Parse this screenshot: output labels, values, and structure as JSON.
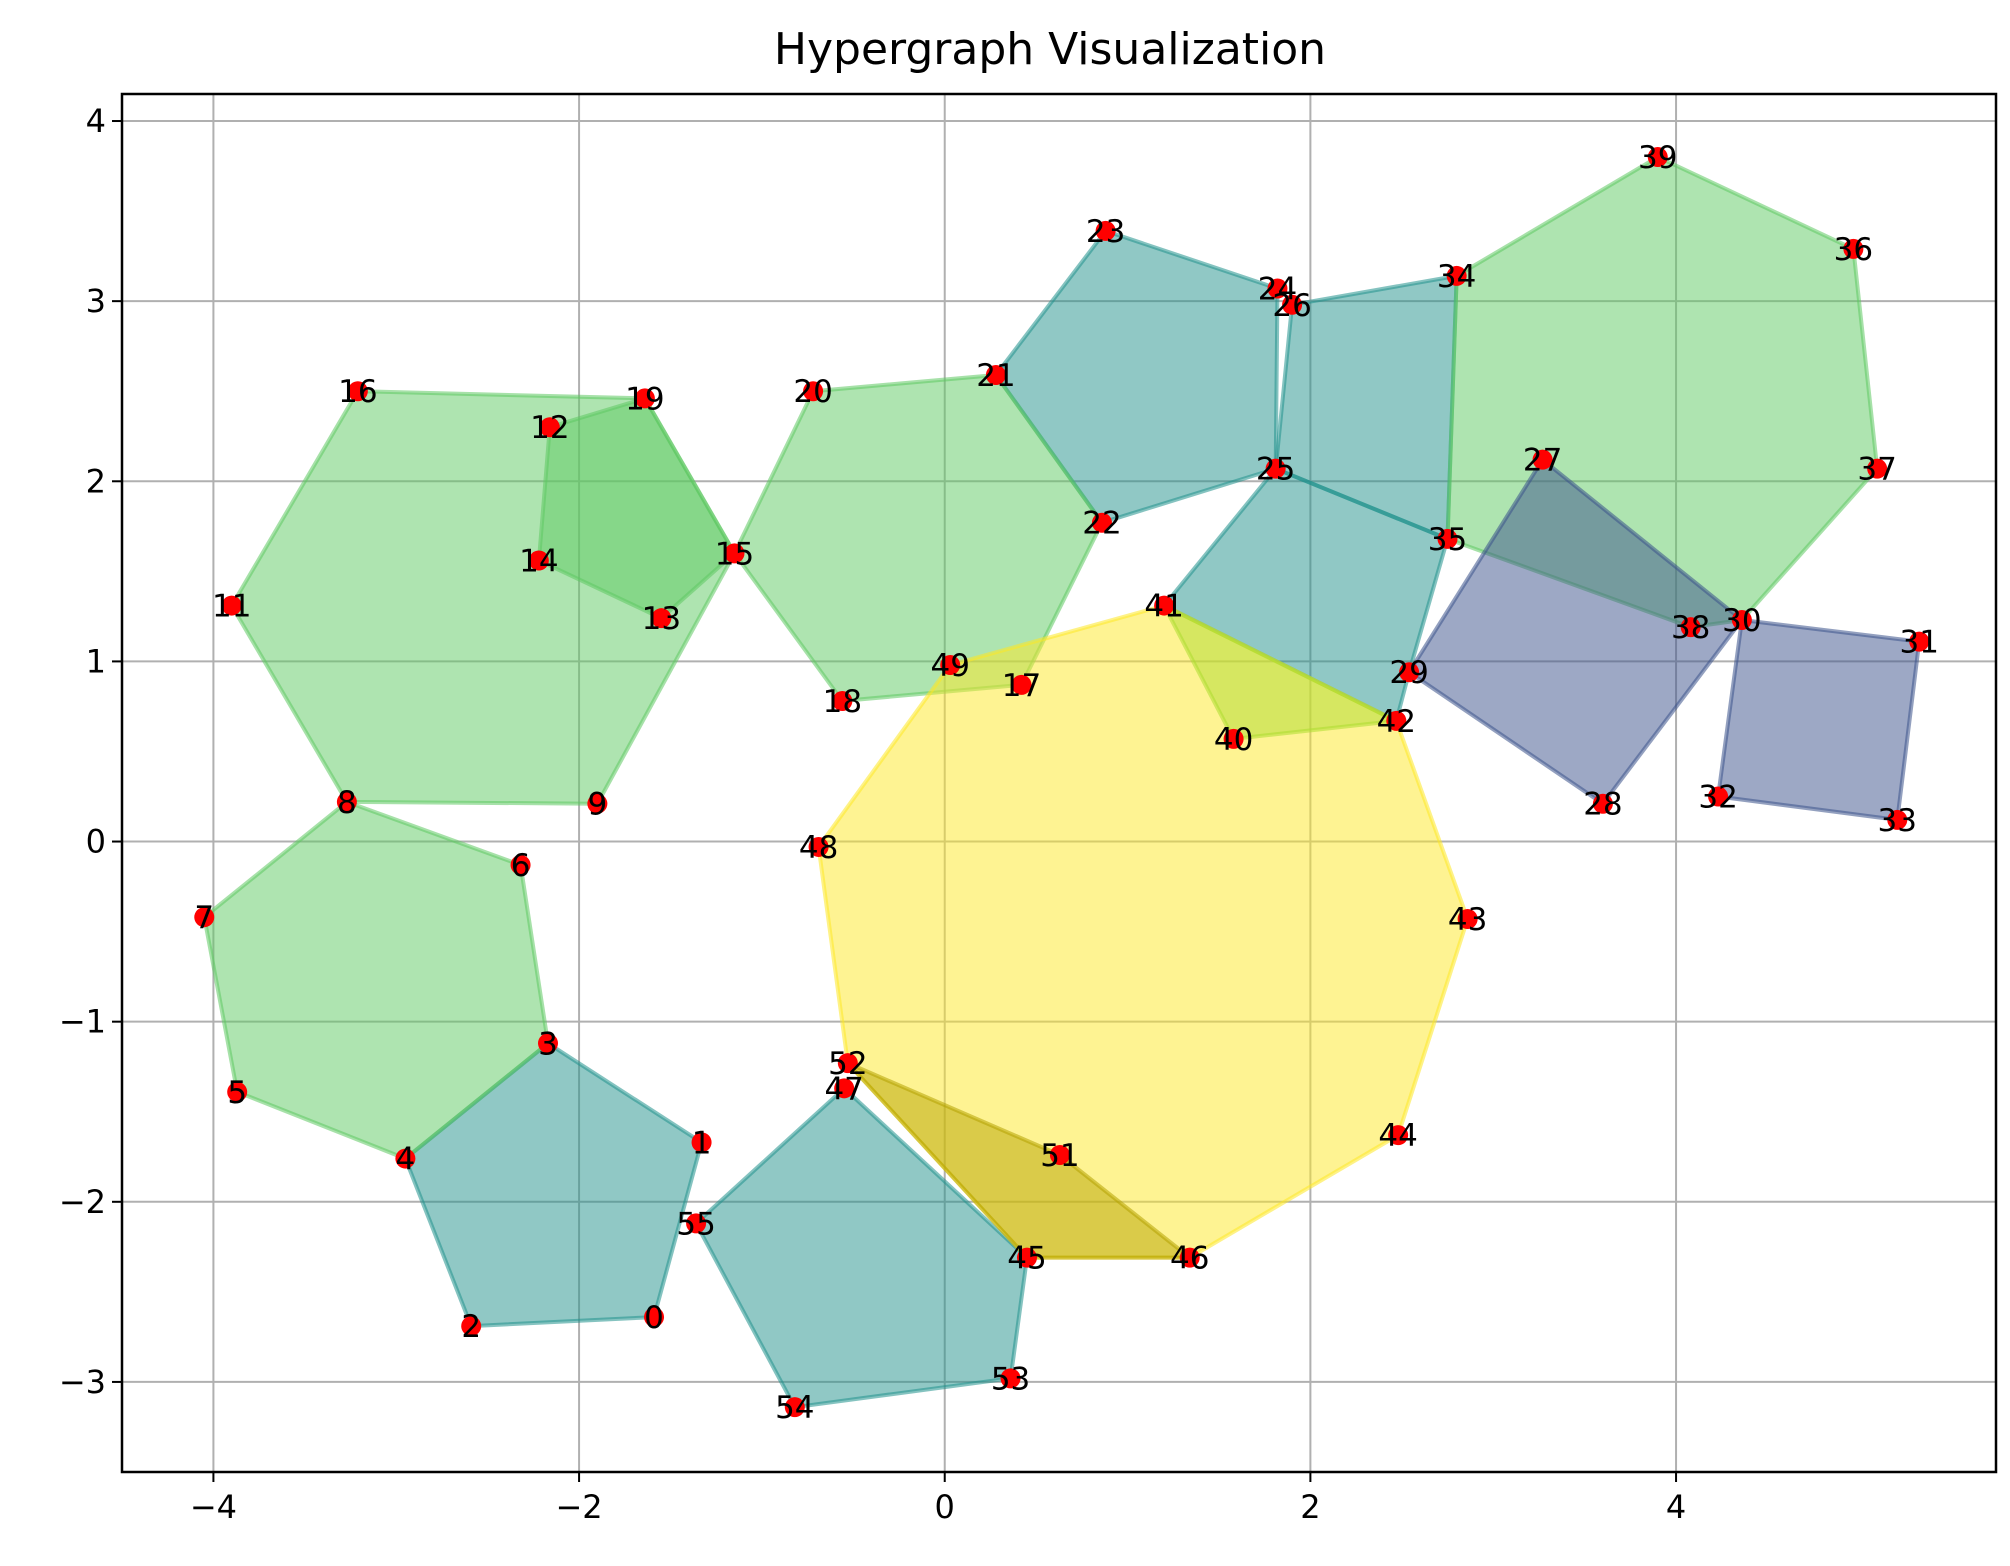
{
  "chart_data": {
    "type": "hypergraph",
    "title": "Hypergraph Visualization",
    "xlim": [
      -4.5,
      5.75
    ],
    "ylim": [
      -3.5,
      4.15
    ],
    "xticks": [
      -4,
      -2,
      0,
      2,
      4
    ],
    "yticks": [
      -3,
      -2,
      -1,
      0,
      1,
      2,
      3,
      4
    ],
    "xtick_labels": [
      "−4",
      "−2",
      "0",
      "2",
      "4"
    ],
    "ytick_labels": [
      "−3",
      "−2",
      "−1",
      "0",
      "1",
      "2",
      "3",
      "4"
    ],
    "grid": true,
    "node_color": "#ff0000",
    "nodes": [
      {
        "id": "0",
        "x": -1.59,
        "y": -2.64
      },
      {
        "id": "1",
        "x": -1.33,
        "y": -1.67
      },
      {
        "id": "2",
        "x": -2.59,
        "y": -2.69
      },
      {
        "id": "3",
        "x": -2.17,
        "y": -1.12
      },
      {
        "id": "4",
        "x": -2.95,
        "y": -1.76
      },
      {
        "id": "5",
        "x": -3.87,
        "y": -1.39
      },
      {
        "id": "6",
        "x": -2.32,
        "y": -0.13
      },
      {
        "id": "7",
        "x": -4.05,
        "y": -0.42
      },
      {
        "id": "8",
        "x": -3.27,
        "y": 0.22
      },
      {
        "id": "9",
        "x": -1.9,
        "y": 0.21
      },
      {
        "id": "11",
        "x": -3.9,
        "y": 1.31
      },
      {
        "id": "12",
        "x": -2.16,
        "y": 2.3
      },
      {
        "id": "13",
        "x": -1.55,
        "y": 1.24
      },
      {
        "id": "14",
        "x": -2.22,
        "y": 1.56
      },
      {
        "id": "15",
        "x": -1.15,
        "y": 1.6
      },
      {
        "id": "16",
        "x": -3.21,
        "y": 2.5
      },
      {
        "id": "17",
        "x": 0.42,
        "y": 0.87
      },
      {
        "id": "18",
        "x": -0.56,
        "y": 0.78
      },
      {
        "id": "19",
        "x": -1.64,
        "y": 2.46
      },
      {
        "id": "20",
        "x": -0.72,
        "y": 2.5
      },
      {
        "id": "21",
        "x": 0.28,
        "y": 2.59
      },
      {
        "id": "22",
        "x": 0.86,
        "y": 1.77
      },
      {
        "id": "23",
        "x": 0.88,
        "y": 3.39
      },
      {
        "id": "24",
        "x": 1.82,
        "y": 3.07
      },
      {
        "id": "25",
        "x": 1.81,
        "y": 2.07
      },
      {
        "id": "26",
        "x": 1.9,
        "y": 2.98
      },
      {
        "id": "27",
        "x": 3.27,
        "y": 2.12
      },
      {
        "id": "28",
        "x": 3.6,
        "y": 0.21
      },
      {
        "id": "29",
        "x": 2.54,
        "y": 0.94
      },
      {
        "id": "30",
        "x": 4.36,
        "y": 1.23
      },
      {
        "id": "31",
        "x": 5.33,
        "y": 1.11
      },
      {
        "id": "32",
        "x": 4.23,
        "y": 0.25
      },
      {
        "id": "33",
        "x": 5.21,
        "y": 0.12
      },
      {
        "id": "34",
        "x": 2.8,
        "y": 3.14
      },
      {
        "id": "35",
        "x": 2.75,
        "y": 1.68
      },
      {
        "id": "36",
        "x": 4.97,
        "y": 3.29
      },
      {
        "id": "37",
        "x": 5.1,
        "y": 2.07
      },
      {
        "id": "38",
        "x": 4.08,
        "y": 1.19
      },
      {
        "id": "39",
        "x": 3.9,
        "y": 3.8
      },
      {
        "id": "40",
        "x": 1.58,
        "y": 0.57
      },
      {
        "id": "41",
        "x": 1.2,
        "y": 1.31
      },
      {
        "id": "42",
        "x": 2.47,
        "y": 0.67
      },
      {
        "id": "43",
        "x": 2.86,
        "y": -0.43
      },
      {
        "id": "44",
        "x": 2.48,
        "y": -1.63
      },
      {
        "id": "45",
        "x": 0.45,
        "y": -2.31
      },
      {
        "id": "46",
        "x": 1.34,
        "y": -2.31
      },
      {
        "id": "47",
        "x": -0.55,
        "y": -1.37
      },
      {
        "id": "48",
        "x": -0.69,
        "y": -0.03
      },
      {
        "id": "49",
        "x": 0.03,
        "y": 0.98
      },
      {
        "id": "51",
        "x": 0.63,
        "y": -1.74
      },
      {
        "id": "52",
        "x": -0.53,
        "y": -1.23
      },
      {
        "id": "53",
        "x": 0.36,
        "y": -2.98
      },
      {
        "id": "54",
        "x": -0.82,
        "y": -3.14
      },
      {
        "id": "55",
        "x": -1.36,
        "y": -2.12
      }
    ],
    "hyperedges": [
      {
        "nodes": [
          "4",
          "3",
          "1",
          "0",
          "2"
        ],
        "color": "#21918c"
      },
      {
        "nodes": [
          "55",
          "47",
          "45",
          "53",
          "54"
        ],
        "color": "#21918c"
      },
      {
        "nodes": [
          "21",
          "23",
          "24",
          "25",
          "22"
        ],
        "color": "#21918c"
      },
      {
        "nodes": [
          "26",
          "34",
          "35",
          "25"
        ],
        "color": "#21918c"
      },
      {
        "nodes": [
          "41",
          "25",
          "35",
          "29",
          "42"
        ],
        "color": "#21918c"
      },
      {
        "nodes": [
          "7",
          "8",
          "6",
          "3",
          "4",
          "5"
        ],
        "color": "#5ec962"
      },
      {
        "nodes": [
          "11",
          "16",
          "19",
          "15",
          "9",
          "8"
        ],
        "color": "#5ec962"
      },
      {
        "nodes": [
          "12",
          "19",
          "15",
          "13",
          "14"
        ],
        "color": "#5ec962"
      },
      {
        "nodes": [
          "20",
          "21",
          "22",
          "17",
          "18",
          "15"
        ],
        "color": "#5ec962"
      },
      {
        "nodes": [
          "34",
          "39",
          "36",
          "37",
          "30",
          "38",
          "35"
        ],
        "color": "#5ec962"
      },
      {
        "nodes": [
          "49",
          "41",
          "42",
          "43",
          "44",
          "46",
          "45",
          "52",
          "48"
        ],
        "color": "#fde725"
      },
      {
        "nodes": [
          "41",
          "42",
          "40"
        ],
        "color": "#addc30"
      },
      {
        "nodes": [
          "52",
          "51",
          "46",
          "45"
        ],
        "color": "#b5a300"
      },
      {
        "nodes": [
          "27",
          "30",
          "28",
          "29"
        ],
        "color": "#3b528b"
      },
      {
        "nodes": [
          "30",
          "31",
          "33",
          "32"
        ],
        "color": "#3b528b"
      }
    ]
  }
}
